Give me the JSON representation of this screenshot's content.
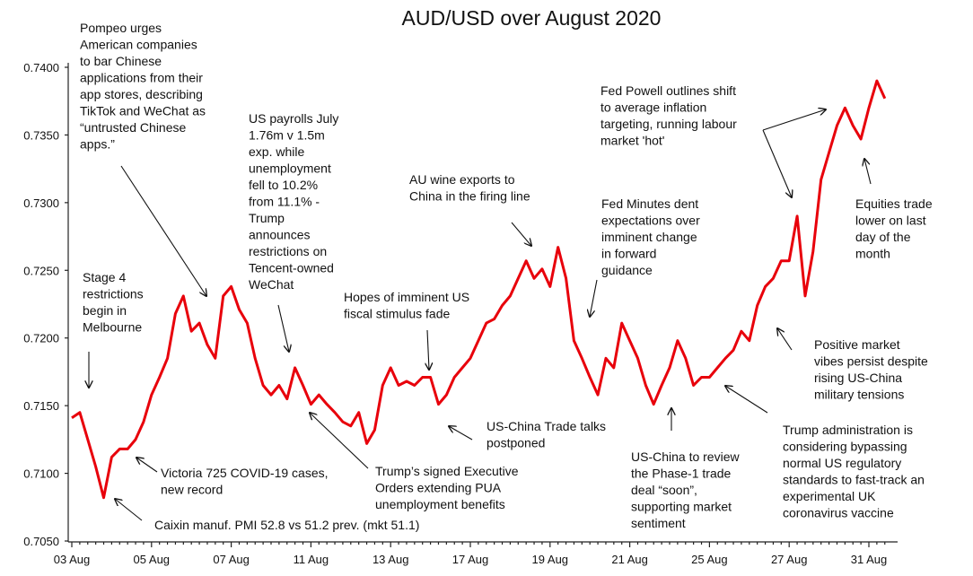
{
  "chart_data": {
    "type": "line",
    "title": "AUD/USD over August 2020",
    "categories": [
      "03 Aug",
      null,
      null,
      null,
      null,
      null,
      null,
      null,
      null,
      null,
      "05 Aug",
      null,
      null,
      null,
      null,
      null,
      null,
      null,
      null,
      null,
      "07 Aug",
      null,
      null,
      null,
      null,
      null,
      null,
      null,
      null,
      null,
      "11 Aug",
      null,
      null,
      null,
      null,
      null,
      null,
      null,
      null,
      null,
      "13 Aug",
      null,
      null,
      null,
      null,
      null,
      null,
      null,
      null,
      null,
      "17 Aug",
      null,
      null,
      null,
      null,
      null,
      null,
      null,
      null,
      null,
      "19 Aug",
      null,
      null,
      null,
      null,
      null,
      null,
      null,
      null,
      null,
      "21 Aug",
      null,
      null,
      null,
      null,
      null,
      null,
      null,
      null,
      null,
      "25 Aug",
      null,
      null,
      null,
      null,
      null,
      null,
      null,
      null,
      null,
      "27 Aug",
      null,
      null,
      null,
      null,
      null,
      null,
      null,
      null,
      null,
      "31 Aug",
      null,
      null
    ],
    "series": [
      {
        "name": "AUD/USD",
        "color": "#e8000b",
        "values": [
          0.7141,
          0.7145,
          0.7125,
          0.7105,
          0.7082,
          0.7112,
          0.7118,
          0.7118,
          0.7125,
          0.7138,
          0.7158,
          0.7171,
          0.7185,
          0.7218,
          0.7231,
          0.7205,
          0.7211,
          0.7195,
          0.7185,
          0.7231,
          0.7238,
          0.7221,
          0.7211,
          0.7185,
          0.7165,
          0.7158,
          0.7165,
          0.7155,
          0.7178,
          0.7165,
          0.7151,
          0.7158,
          0.7151,
          0.7145,
          0.7138,
          0.7135,
          0.7145,
          0.7122,
          0.7132,
          0.7165,
          0.7178,
          0.7165,
          0.7168,
          0.7165,
          0.7171,
          0.7171,
          0.7151,
          0.7158,
          0.7171,
          0.7178,
          0.7185,
          0.7198,
          0.7211,
          0.7214,
          0.7224,
          0.7231,
          0.7244,
          0.7257,
          0.7244,
          0.7251,
          0.7238,
          0.7267,
          0.7244,
          0.7198,
          0.7185,
          0.7171,
          0.7158,
          0.7185,
          0.7178,
          0.7211,
          0.7198,
          0.7185,
          0.7165,
          0.7151,
          0.7165,
          0.7178,
          0.7198,
          0.7185,
          0.7165,
          0.7171,
          0.7171,
          0.7178,
          0.7185,
          0.7191,
          0.7205,
          0.7198,
          0.7224,
          0.7238,
          0.7244,
          0.7257,
          0.7257,
          0.729,
          0.7231,
          0.7264,
          0.7317,
          0.7337,
          0.7357,
          0.737,
          0.7357,
          0.7347,
          0.737,
          0.739,
          0.7377
        ]
      }
    ],
    "ylim": [
      0.705,
      0.74
    ],
    "yticks": [
      {
        "value": 0.705,
        "label": "0.7050"
      },
      {
        "value": 0.71,
        "label": "0.7100"
      },
      {
        "value": 0.715,
        "label": "0.7150"
      },
      {
        "value": 0.72,
        "label": "0.7200"
      },
      {
        "value": 0.725,
        "label": "0.7250"
      },
      {
        "value": 0.73,
        "label": "0.7300"
      },
      {
        "value": 0.735,
        "label": "0.7350"
      },
      {
        "value": 0.74,
        "label": "0.7400"
      }
    ],
    "grid": false,
    "annotations": [
      [
        "Pompeo urges",
        "American companies",
        "to bar Chinese",
        "applications from their",
        "app stores, describing",
        "TikTok and WeChat as",
        "“untrusted Chinese",
        "apps.”"
      ],
      [
        "US payrolls July",
        "1.76m v 1.5m",
        "exp. while",
        "unemployment",
        "fell to 10.2%",
        "from 11.1% -",
        "Trump",
        "announces",
        "restrictions on",
        "Tencent-owned",
        "WeChat"
      ],
      [
        "Stage 4",
        "restrictions",
        "begin in",
        "Melbourne"
      ],
      [
        "Victoria 725 COVID-19 cases,",
        "new record"
      ],
      [
        "Caixin manuf. PMI 52.8 vs 51.2 prev. (mkt 51.1)"
      ],
      [
        "Hopes of imminent US",
        "fiscal stimulus fade"
      ],
      [
        "Trump’s signed Executive",
        "Orders extending PUA",
        "unemployment benefits"
      ],
      [
        "AU wine exports to",
        "China in the firing line"
      ],
      [
        "US-China Trade talks",
        "postponed"
      ],
      [
        "Fed Minutes dent",
        "expectations over",
        "imminent change",
        "in forward",
        "guidance"
      ],
      [
        "US-China to review",
        "the Phase-1 trade",
        "deal “soon”,",
        "supporting market",
        "sentiment"
      ],
      [
        "Fed Powell outlines shift",
        "to average inflation",
        "targeting, running labour",
        "market 'hot'"
      ],
      [
        "Equities trade",
        "lower on last",
        "day of the",
        "month"
      ],
      [
        "Positive market",
        "vibes persist despite",
        "rising US-China",
        "military tensions"
      ],
      [
        "Trump administration is",
        "considering bypassing",
        "normal US regulatory",
        "standards to fast-track an",
        "experimental UK",
        "coronavirus vaccine"
      ]
    ]
  }
}
